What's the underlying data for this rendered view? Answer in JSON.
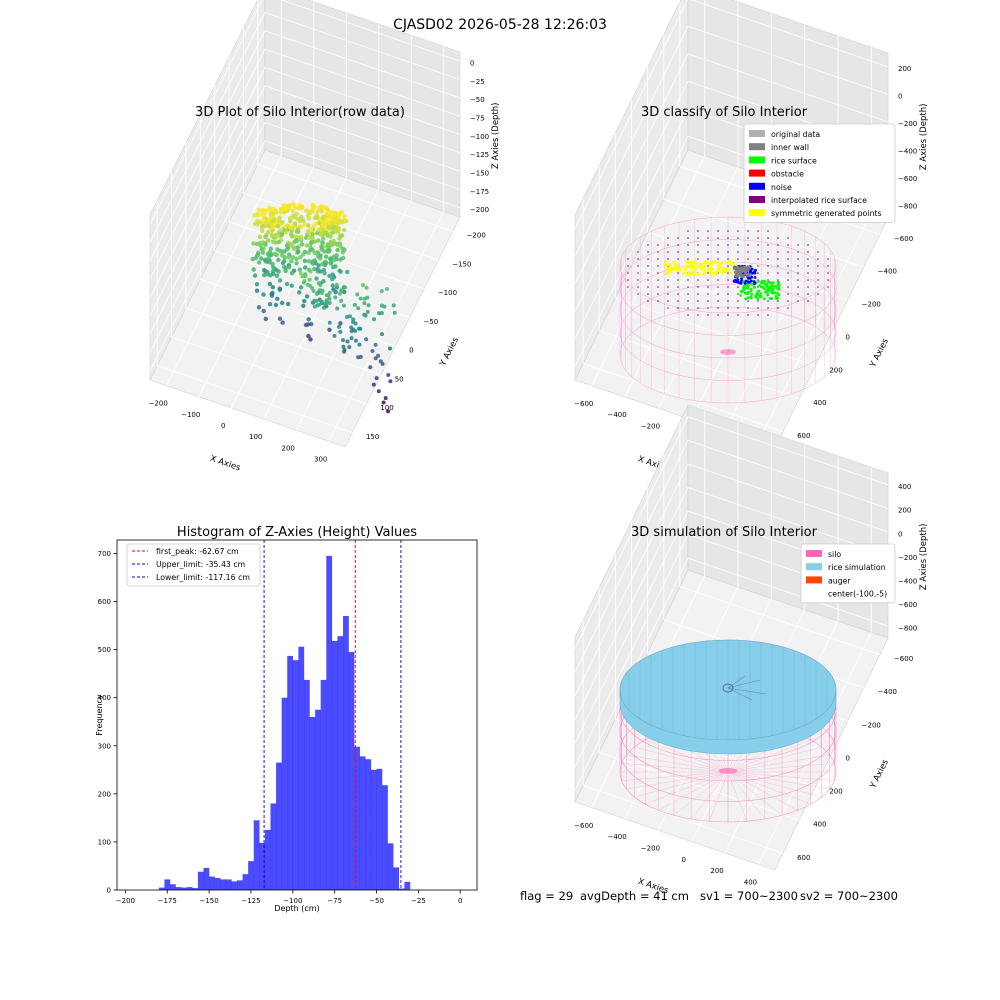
{
  "suptitle": "CJASD02 2026-05-28 12:26:03",
  "footer": {
    "flag": "flag = 29",
    "avg_depth": "avgDepth = 41 cm",
    "sv1": "sv1 = 700~2300",
    "sv2": "sv2 = 700~2300"
  },
  "colors": {
    "hist": "#0000ff",
    "first_peak": "#ff0000",
    "limit": "#0000cc",
    "silo": "#ff69b4",
    "rice": "#87ceeb",
    "auger": "#ff4500",
    "original": "#b0b0b0",
    "inner_wall": "#808080",
    "rice_surface": "#00ff00",
    "obstacle": "#ff0000",
    "noise": "#0000ff",
    "interp": "#800080",
    "sym": "#ffff00"
  },
  "chart_data": [
    {
      "type": "scatter",
      "projection": "3d",
      "title": "3D Plot of Silo Interior(row data)",
      "xlabel": "X Axies",
      "ylabel": "Y Axies",
      "zlabel": "Z Axies (Depth)",
      "xticks": [
        "−200",
        "−100",
        "0",
        "100",
        "200",
        "300"
      ],
      "yticks": [
        "150",
        "100",
        "50",
        "0",
        "−50",
        "−100",
        "−150",
        "−200"
      ],
      "zticks": [
        "0",
        "−25",
        "−50",
        "−75",
        "−100",
        "−125",
        "−150",
        "−175",
        "−200"
      ],
      "colormap": "viridis",
      "grid": true
    },
    {
      "type": "scatter",
      "projection": "3d",
      "title": "3D classify of Silo Interior",
      "xlabel": "X Axies",
      "ylabel": "Y Axies",
      "zlabel": "Z Axies (Depth)",
      "xticks": [
        "−600",
        "−400",
        "−200",
        "0",
        "200",
        "400"
      ],
      "yticks": [
        "600",
        "400",
        "200",
        "0",
        "−200",
        "−400",
        "−600"
      ],
      "zticks": [
        "200",
        "0",
        "−200",
        "−400",
        "−600",
        "−800"
      ],
      "legend_position": "top-right",
      "legend": [
        {
          "label": "original data",
          "color": "#b0b0b0"
        },
        {
          "label": "inner wall",
          "color": "#808080"
        },
        {
          "label": "rice surface",
          "color": "#00ff00"
        },
        {
          "label": "obstacle",
          "color": "#ff0000"
        },
        {
          "label": "noise",
          "color": "#0000ff"
        },
        {
          "label": "interpolated rice surface",
          "color": "#800080"
        },
        {
          "label": "symmetric generated points",
          "color": "#ffff00"
        }
      ],
      "grid": true
    },
    {
      "type": "bar",
      "title": "Histogram of Z-Axies (Height) Values",
      "xlabel": "Depth (cm)",
      "ylabel": "Frequency",
      "xlim": [
        -205,
        10
      ],
      "ylim": [
        0,
        728
      ],
      "xticks": [
        -200,
        -175,
        -150,
        -125,
        -100,
        -75,
        -50,
        -25,
        0
      ],
      "yticks": [
        0,
        100,
        200,
        300,
        400,
        500,
        600,
        700
      ],
      "bin_start": -180,
      "bin_width": 3.333,
      "values": [
        5,
        22,
        12,
        6,
        5,
        6,
        4,
        38,
        46,
        28,
        25,
        22,
        22,
        18,
        20,
        33,
        60,
        145,
        98,
        125,
        180,
        265,
        400,
        487,
        478,
        506,
        437,
        360,
        375,
        437,
        695,
        518,
        528,
        570,
        495,
        298,
        278,
        272,
        250,
        252,
        218,
        97,
        47,
        3,
        17
      ],
      "first_peak": -62.67,
      "upper_limit": -35.43,
      "lower_limit": -117.16,
      "legend_position": "top-left",
      "legend": [
        {
          "label": "first_peak: -62.67 cm",
          "color": "#ff0000"
        },
        {
          "label": "Upper_limit: -35.43 cm",
          "color": "#0000cc"
        },
        {
          "label": "Lower_limit: -117.16 cm",
          "color": "#0000cc"
        }
      ],
      "grid": false
    },
    {
      "type": "surface",
      "projection": "3d",
      "title": "3D simulation of Silo Interior",
      "xlabel": "X Axies",
      "ylabel": "Y Axies",
      "zlabel": "Z Axies (Depth)",
      "xticks": [
        "−600",
        "−400",
        "−200",
        "0",
        "200",
        "400"
      ],
      "yticks": [
        "600",
        "400",
        "200",
        "0",
        "−200",
        "−400",
        "−600"
      ],
      "zticks": [
        "400",
        "200",
        "0",
        "−200",
        "−400",
        "−600",
        "−800"
      ],
      "legend_position": "top-right",
      "legend": [
        {
          "label": "silo",
          "color": "#ff69b4"
        },
        {
          "label": "rice simulation",
          "color": "#87ceeb"
        },
        {
          "label": "auger",
          "color": "#ff4500"
        },
        {
          "label": "center(-100,-5)",
          "color": ""
        }
      ],
      "grid": true
    }
  ]
}
